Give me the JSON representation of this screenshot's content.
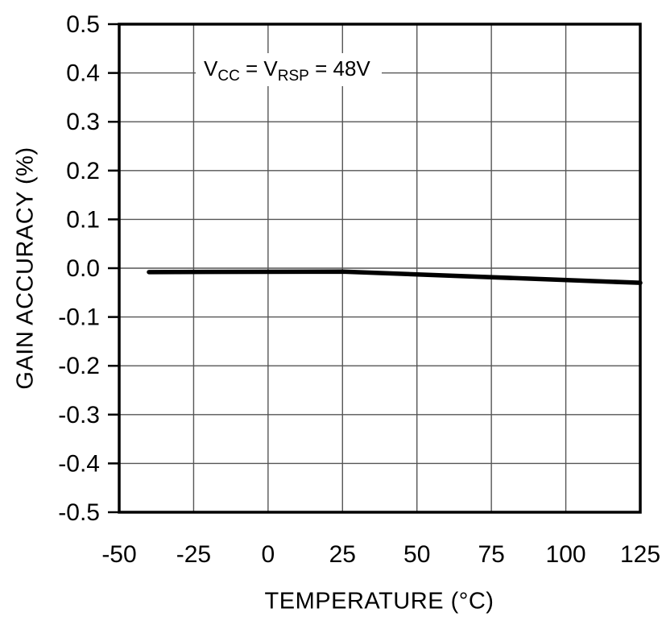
{
  "chart_data": {
    "type": "line",
    "title": "",
    "xlabel": "TEMPERATURE (°C)",
    "ylabel": "GAIN ACCURACY (%)",
    "xlim": [
      -50,
      125
    ],
    "ylim": [
      -0.5,
      0.5
    ],
    "grid": true,
    "legend_position": "none",
    "x_ticks": [
      -50,
      -25,
      0,
      25,
      50,
      75,
      100,
      125
    ],
    "x_tick_labels": [
      "-50",
      "-25",
      "0",
      "25",
      "50",
      "75",
      "100",
      "125"
    ],
    "y_ticks": [
      0.5,
      0.4,
      0.3,
      0.2,
      0.1,
      0.0,
      -0.1,
      -0.2,
      -0.3,
      -0.4,
      -0.5
    ],
    "y_tick_labels": [
      "0.5",
      "0.4",
      "0.3",
      "0.2",
      "0.1",
      "0.0",
      "-0.1",
      "-0.2",
      "-0.3",
      "-0.4",
      "-0.5"
    ],
    "series": [
      {
        "name": "gain accuracy",
        "color": "#000000",
        "points": [
          {
            "x": -40,
            "y": -0.008
          },
          {
            "x": 25,
            "y": -0.007
          },
          {
            "x": 125,
            "y": -0.03
          }
        ]
      }
    ],
    "annotation_text": "VCC = VRSP = 48V"
  },
  "axes": {
    "xlabel": "TEMPERATURE (°C)",
    "ylabel": "GAIN ACCURACY (%)"
  },
  "annotation": {
    "v1": "V",
    "sub1": "CC",
    "mid": " = V",
    "sub2": "RSP",
    "tail": " = 48V"
  }
}
